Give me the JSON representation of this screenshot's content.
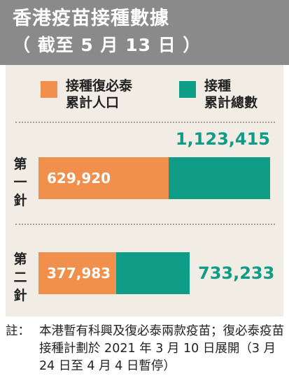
{
  "header": {
    "title": "香港疫苗接種數據",
    "subtitle": "（ 截至 5 月 13 日 ）"
  },
  "legend": {
    "biontech_label_line1": "接種復必泰",
    "biontech_label_line2": "累計人口",
    "total_label_line1": "接種",
    "total_label_line2": "累計總數"
  },
  "doses": {
    "first_line1": "第",
    "first_line2": "一",
    "first_line3": "針",
    "second_line1": "第",
    "second_line2": "二",
    "second_line3": "針"
  },
  "labels": {
    "first_biontech": "629,920",
    "first_total": "1,123,415",
    "second_biontech": "377,983",
    "second_total": "733,233"
  },
  "note": {
    "label": "註：",
    "text": "本港暫有科興及復必泰兩款疫苗；復必泰疫苗接種計劃於 2021 年 3 月 10 日展開（3 月 24 日至 4 月 4 日暫停）"
  },
  "colors": {
    "header_bg": "#8a8a8a",
    "panel_bg": "#f1ede4",
    "biontech": "#f0904c",
    "total": "#0e9c87"
  },
  "chart_data": {
    "type": "bar",
    "orientation": "horizontal",
    "title": "香港疫苗接種數據",
    "subtitle": "（ 截至 5 月 13 日 ）",
    "categories": [
      "第一針",
      "第二針"
    ],
    "series": [
      {
        "name": "接種復必泰累計人口",
        "values": [
          629920,
          377983
        ]
      },
      {
        "name": "接種累計總數",
        "values": [
          1123415,
          733233
        ]
      }
    ],
    "grid": false,
    "legend_position": "top"
  }
}
